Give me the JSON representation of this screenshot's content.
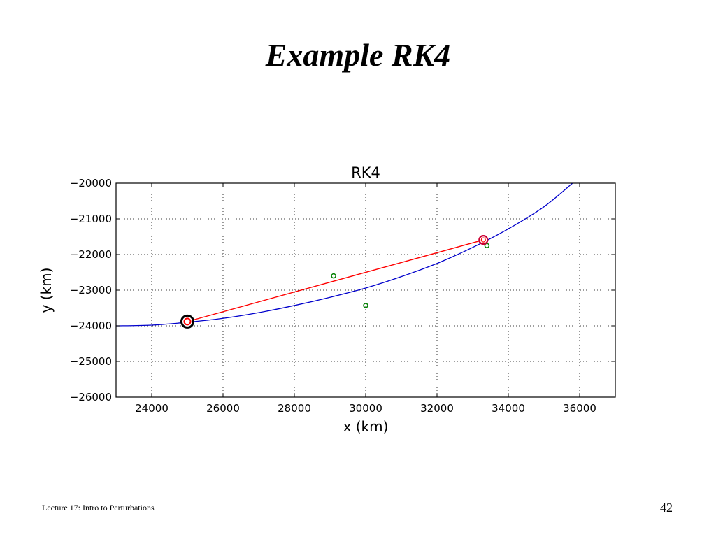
{
  "slide": {
    "title": "Example RK4",
    "footer_text": "Lecture 17: Intro to Perturbations",
    "page_number": "42"
  },
  "chart_data": {
    "type": "line",
    "title": "RK4",
    "xlabel": "x (km)",
    "ylabel": "y (km)",
    "xlim": [
      23000,
      37000
    ],
    "ylim": [
      -26000,
      -20000
    ],
    "xticks": [
      24000,
      26000,
      28000,
      30000,
      32000,
      34000,
      36000
    ],
    "yticks": [
      -20000,
      -21000,
      -22000,
      -23000,
      -24000,
      -25000,
      -26000
    ],
    "xtick_labels": [
      "24000",
      "26000",
      "28000",
      "30000",
      "32000",
      "34000",
      "36000"
    ],
    "ytick_labels": [
      "−20000",
      "−21000",
      "−22000",
      "−23000",
      "−24000",
      "−25000",
      "−26000"
    ],
    "grid": true,
    "series": [
      {
        "kind": "curve",
        "color": "#0000cc",
        "x": [
          23000,
          24000,
          25000,
          26000,
          27000,
          28000,
          29000,
          30000,
          31000,
          32000,
          33000,
          34000,
          35000,
          35800
        ],
        "y": [
          -24000,
          -23980,
          -23900,
          -23790,
          -23630,
          -23430,
          -23200,
          -22940,
          -22620,
          -22250,
          -21800,
          -21280,
          -20660,
          -20000
        ]
      },
      {
        "kind": "segment",
        "color": "#ff0000",
        "x": [
          25000,
          33300
        ],
        "y": [
          -23880,
          -21590
        ]
      },
      {
        "kind": "points",
        "color": "#008000",
        "x": [
          29100,
          30000,
          33400
        ],
        "y": [
          -22600,
          -23430,
          -21750
        ]
      },
      {
        "kind": "start-marker",
        "x": [
          25000
        ],
        "y": [
          -23880
        ]
      },
      {
        "kind": "end-marker",
        "x": [
          33300
        ],
        "y": [
          -21590
        ]
      }
    ]
  }
}
